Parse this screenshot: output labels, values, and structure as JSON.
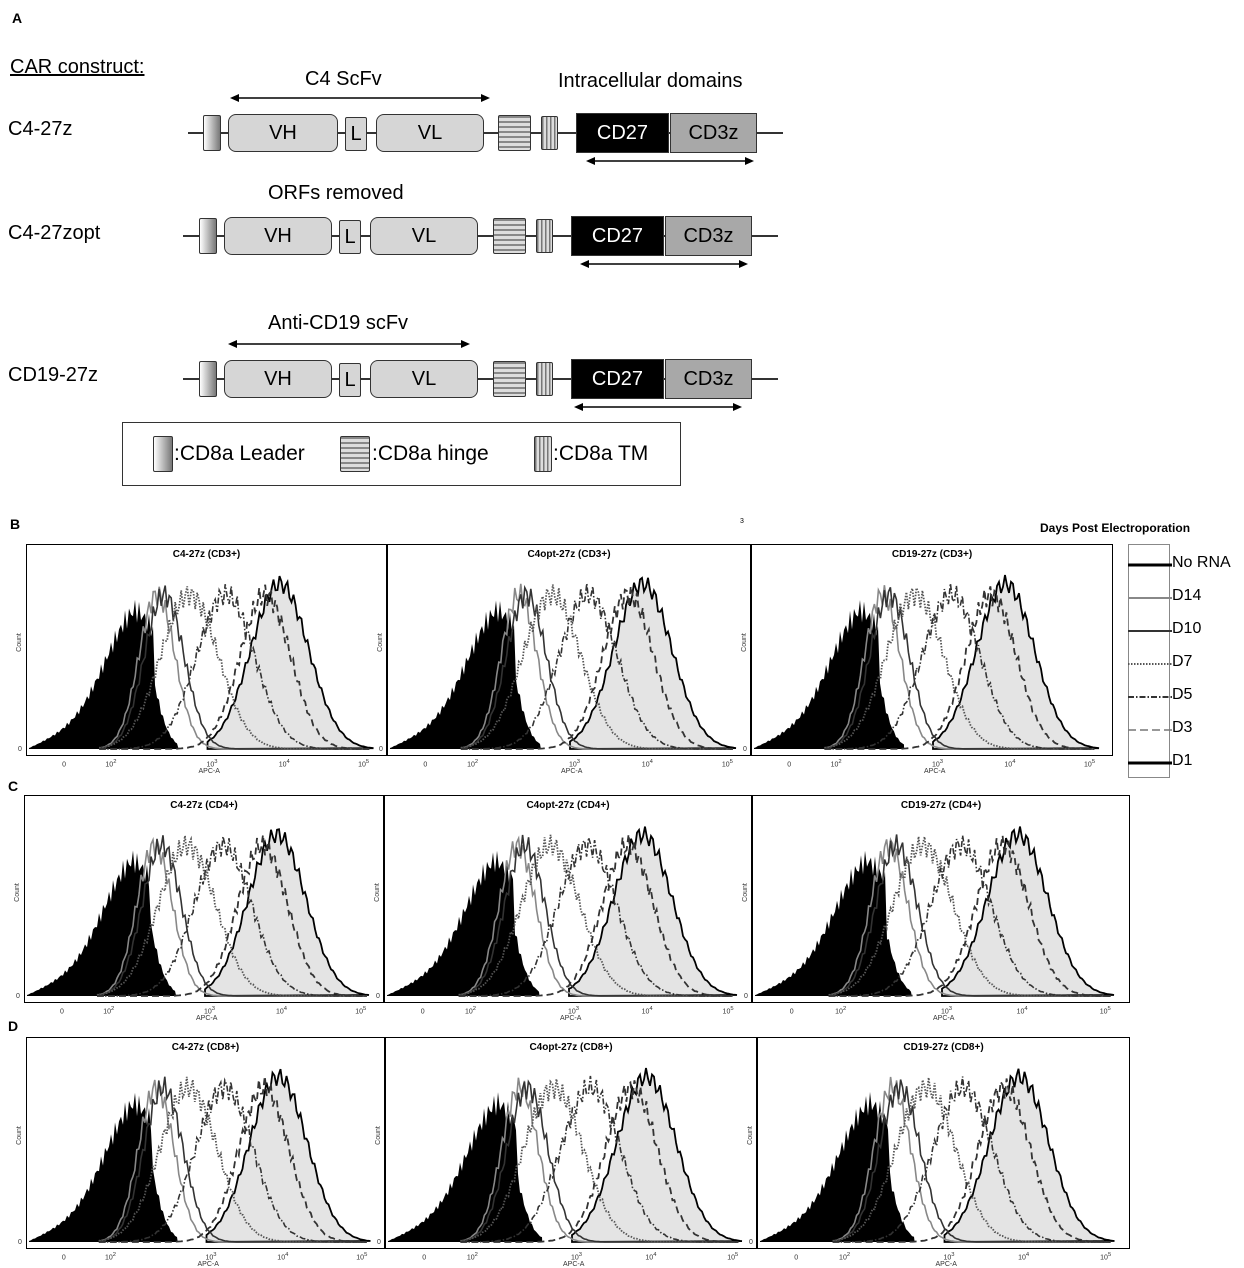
{
  "panel_a": {
    "letter": "A",
    "heading": "CAR  construct:",
    "constructs": [
      {
        "label": "C4-27z",
        "annotation": "C4  ScFv",
        "annotation2": "Intracellular domains"
      },
      {
        "label": "C4-27zopt",
        "annotation": "ORFs removed"
      },
      {
        "label": "CD19-27z",
        "annotation": "Anti-CD19 scFv"
      }
    ],
    "domains": {
      "vh": "VH",
      "l": "L",
      "vl": "VL",
      "cd27": "CD27",
      "cd3z": "CD3z"
    },
    "legend": {
      "leader": ":CD8a Leader",
      "hinge": ":CD8a hinge",
      "tm": ":CD8a TM"
    }
  },
  "flow": {
    "rows": [
      {
        "letter": "B",
        "titles": [
          "C4-27z (CD3+)",
          "C4opt-27z (CD3+)",
          "CD19-27z (CD3+)"
        ]
      },
      {
        "letter": "C",
        "titles": [
          "C4-27z (CD4+)",
          "C4opt-27z (CD4+)",
          "CD19-27z (CD4+)"
        ]
      },
      {
        "letter": "D",
        "titles": [
          "C4-27z (CD8+)",
          "C4opt-27z (CD8+)",
          "CD19-27z (CD8+)"
        ]
      }
    ],
    "x_label": "APC-A",
    "y_label": "Count",
    "stray_mark": "3",
    "legend_title": "Days Post Electroporation",
    "legend_items": [
      "No RNA",
      "D14",
      "D10",
      "D7",
      "D5",
      "D3",
      "D1"
    ],
    "x_ticks": [
      "0",
      "10",
      "10",
      "10",
      "10"
    ],
    "x_tick_exps": [
      "",
      "2",
      "3",
      "4",
      "5"
    ],
    "y_zero": "0"
  }
}
